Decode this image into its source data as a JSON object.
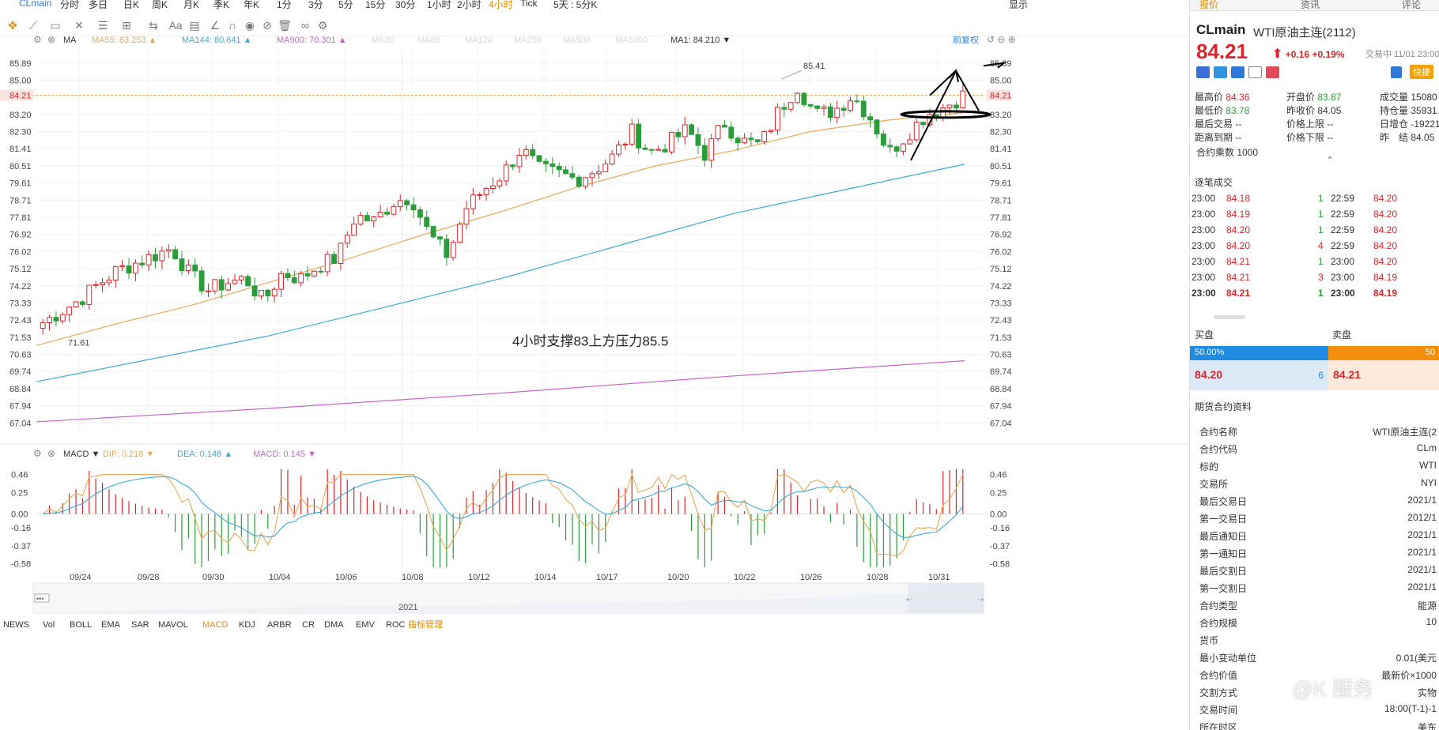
{
  "toolbar": {
    "symbol": "CLmain",
    "periods": [
      "分时",
      "多日",
      "日K",
      "周K",
      "月K",
      "季K",
      "年K",
      "1分",
      "3分",
      "5分",
      "15分",
      "30分",
      "1小时",
      "2小时",
      "4小时",
      "Tick",
      "5天 : 5分K"
    ],
    "active_period": "4小时",
    "right_items": [
      "显示"
    ]
  },
  "main_legend": {
    "ma_label": "MA",
    "ma55": "MA55: 83.253",
    "ma144": "MA144: 80.641",
    "ma900": "MA900: 70.301",
    "faded": [
      "MA30",
      "MA60",
      "MA120",
      "MA250",
      "MA500",
      "MA1000"
    ],
    "ma1": "MA1: 84.210",
    "restore": "前复权"
  },
  "macd_legend": {
    "label": "MACD",
    "dif": "DIF: 0.218",
    "dea": "DEA: 0.148",
    "macd": "MACD: 0.145"
  },
  "annotation_text": "4小时支撑83上方压力85.5",
  "high_label": "85.41",
  "low_label": "71.61",
  "current_price_tag": "84.21",
  "navigator_year": "2021",
  "navigator_dots": "•••",
  "bottom_tabs": [
    "NEWS",
    "Vol",
    "BOLL",
    "EMA",
    "SAR",
    "MAVOL",
    "MACD",
    "KDJ",
    "ARBR",
    "CR",
    "DMA",
    "EMV",
    "ROC",
    "指标管理"
  ],
  "watermark": "@K 服务",
  "chart_data": {
    "type": "candlestick",
    "title": "",
    "y_ticks": [
      "85.89",
      "85.00",
      "84.21",
      "83.20",
      "82.30",
      "81.41",
      "80.51",
      "79.61",
      "78.71",
      "77.81",
      "76.92",
      "76.02",
      "75.12",
      "74.22",
      "73.33",
      "72.43",
      "71.53",
      "70.63",
      "69.74",
      "68.84",
      "67.94",
      "67.04"
    ],
    "ylim": [
      66.6,
      86.3
    ],
    "x_ticks": [
      "09/24",
      "09/28",
      "09/30",
      "10/04",
      "10/06",
      "10/08",
      "10/12",
      "10/14",
      "10/17",
      "10/20",
      "10/22",
      "10/26",
      "10/28",
      "10/31"
    ],
    "close_approx": [
      72.3,
      72.9,
      73.5,
      74.3,
      75.0,
      75.4,
      75.8,
      76.2,
      74.8,
      74.0,
      74.4,
      74.6,
      73.4,
      74.9,
      74.6,
      75.3,
      75.7,
      77.9,
      77.6,
      78.6,
      78.9,
      76.9,
      75.8,
      78.3,
      79.3,
      80.1,
      81.4,
      80.3,
      80.1,
      79.8,
      80.3,
      81.0,
      82.3,
      81.2,
      81.7,
      82.4,
      81.1,
      82.8,
      81.8,
      81.6,
      83.4,
      84.7,
      83.2,
      83.4,
      84.2,
      83.0,
      81.2,
      82.2,
      83.2,
      83.6,
      84.2
    ],
    "ma55_approx": [
      71.1,
      74.4,
      78.1,
      81.5,
      83.3
    ],
    "ma144_approx": [
      69.2,
      71.6,
      74.6,
      78.0,
      80.6
    ],
    "ma900_approx": [
      67.1,
      67.8,
      68.6,
      69.5,
      70.3
    ],
    "macd_y_ticks": [
      "0.46",
      "0.25",
      "0.00",
      "-0.16",
      "-0.37",
      "-0.58"
    ],
    "macd_ylim": [
      -0.62,
      0.52
    ]
  },
  "side": {
    "tabs": [
      "报价",
      "资讯",
      "评论"
    ],
    "active_tab": "报价",
    "symbol": "CLmain",
    "name": "WTI原油主连(2112)",
    "price": "84.21",
    "change": "+0.16",
    "change_pct": "+0.19%",
    "trade_time": "交易中 11/01 23:00",
    "action": "快捷",
    "stats": [
      {
        "label": "最高价",
        "value": "84.36",
        "color": "red"
      },
      {
        "label": "开盘价",
        "value": "83.87",
        "color": "green"
      },
      {
        "label": "成交量",
        "value": "15080",
        "color": "plain"
      },
      {
        "label": "最低价",
        "value": "83.78",
        "color": "green"
      },
      {
        "label": "昨收价",
        "value": "84.05",
        "color": "plain"
      },
      {
        "label": "持仓量",
        "value": "35931",
        "color": "plain"
      },
      {
        "label": "最后交易",
        "value": "--",
        "color": "plain"
      },
      {
        "label": "价格上限",
        "value": "--",
        "color": "plain"
      },
      {
        "label": "日增仓",
        "value": "-19221",
        "color": "plain"
      },
      {
        "label": "距离到期",
        "value": "--",
        "color": "plain"
      },
      {
        "label": "价格下限",
        "value": "--",
        "color": "plain"
      },
      {
        "label": "昨　结",
        "value": "84.05",
        "color": "plain"
      }
    ],
    "multiplier": "合约乘数 1000",
    "trades_title": "逐笔成交",
    "trades": [
      {
        "t1": "23:00",
        "p1": "84.18",
        "v1": "1",
        "t2": "22:59",
        "p2": "84.20"
      },
      {
        "t1": "23:00",
        "p1": "84.19",
        "v1": "1",
        "t2": "22:59",
        "p2": "84.20"
      },
      {
        "t1": "23:00",
        "p1": "84.20",
        "v1": "1",
        "t2": "22:59",
        "p2": "84.20"
      },
      {
        "t1": "23:00",
        "p1": "84.20",
        "v1": "4",
        "t2": "22:59",
        "p2": "84.20"
      },
      {
        "t1": "23:00",
        "p1": "84.21",
        "v1": "1",
        "t2": "23:00",
        "p2": "84.20"
      },
      {
        "t1": "23:00",
        "p1": "84.21",
        "v1": "3",
        "t2": "23:00",
        "p2": "84.19"
      },
      {
        "t1": "23:00",
        "p1": "84.21",
        "v1": "1",
        "t2": "23:00",
        "p2": "84.19"
      }
    ],
    "buy_label": "买盘",
    "sell_label": "卖盘",
    "buy_pct": "50.00%",
    "sell_pct": "50",
    "bid": "84.20",
    "bid_vol": "6",
    "ask": "84.21",
    "info_title": "期货合约资料",
    "info": [
      {
        "k": "合约名称",
        "v": "WTI原油主连(2"
      },
      {
        "k": "合约代码",
        "v": "CLm"
      },
      {
        "k": "标的",
        "v": "WTI"
      },
      {
        "k": "交易所",
        "v": "NYI"
      },
      {
        "k": "最后交易日",
        "v": "2021/1"
      },
      {
        "k": "第一交易日",
        "v": "2012/1"
      },
      {
        "k": "最后通知日",
        "v": "2021/1"
      },
      {
        "k": "第一通知日",
        "v": "2021/1"
      },
      {
        "k": "最后交割日",
        "v": "2021/1"
      },
      {
        "k": "第一交割日",
        "v": "2021/1"
      },
      {
        "k": "合约类型",
        "v": "能源"
      },
      {
        "k": "合约规模",
        "v": "10"
      },
      {
        "k": "货币",
        "v": ""
      },
      {
        "k": "最小变动单位",
        "v": "0.01(美元"
      },
      {
        "k": "合约价值",
        "v": "最新价×1000"
      },
      {
        "k": "交割方式",
        "v": "实物"
      },
      {
        "k": "交易时间",
        "v": "18:00(T-1)-1"
      },
      {
        "k": "所在时区",
        "v": "美东"
      }
    ]
  },
  "colors": {
    "up": "#d9262c",
    "down": "#2a9d3a",
    "ma55": "#e8a857",
    "ma144": "#3aa9d8",
    "ma900": "#c764c7",
    "accent": "#e58a00",
    "link": "#2f7ad8"
  }
}
